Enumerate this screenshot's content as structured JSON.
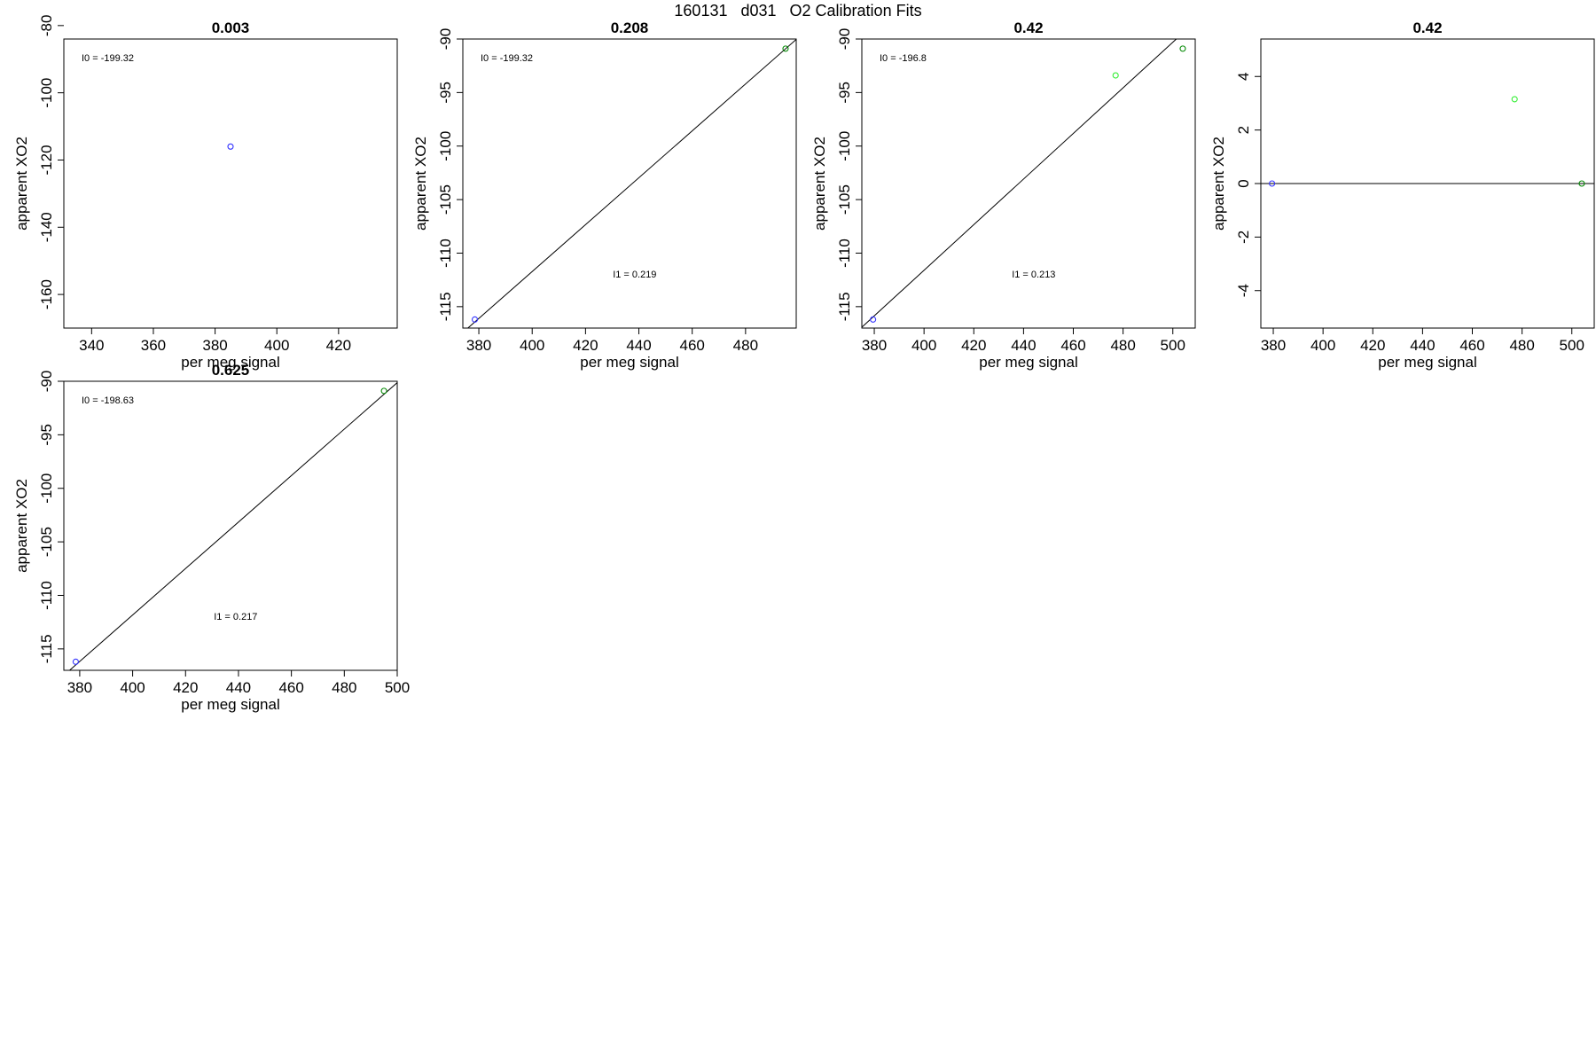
{
  "page_title": "160131   d031   O2 Calibration Fits",
  "colors": {
    "blue": "#3333ff",
    "green": "#008800",
    "light_green": "#33ee33",
    "frame": "#000000"
  },
  "chart_data": [
    {
      "type": "scatter",
      "title": "0.003",
      "xlabel": "per meg signal",
      "ylabel": "apparent XO2",
      "xlim": [
        331,
        439
      ],
      "ylim": [
        -170,
        -84
      ],
      "xticks": [
        340,
        360,
        380,
        400,
        420
      ],
      "yticks": [
        -80,
        -100,
        -120,
        -140,
        -160
      ],
      "annotations": [
        {
          "label": "I0 =",
          "value": "-199.32",
          "position": "top-left"
        }
      ],
      "points": [
        {
          "x": 385,
          "y": -116,
          "color": "blue"
        }
      ],
      "fit_line": null
    },
    {
      "type": "scatter",
      "title": "0.208",
      "xlabel": "per meg signal",
      "ylabel": "apparent XO2",
      "xlim": [
        374,
        499
      ],
      "ylim": [
        -117,
        -90
      ],
      "xticks": [
        380,
        400,
        420,
        440,
        460,
        480
      ],
      "yticks": [
        -90,
        -95,
        -100,
        -105,
        -110,
        -115
      ],
      "annotations": [
        {
          "label": "I0 =",
          "value": "-199.32",
          "position": "top-left"
        },
        {
          "label": "I1 =",
          "value": "0.219",
          "position": "middle"
        }
      ],
      "points": [
        {
          "x": 378.5,
          "y": -116.2,
          "color": "blue"
        },
        {
          "x": 495,
          "y": -90.9,
          "color": "green"
        }
      ],
      "fit_line": {
        "intercept": -199.32,
        "slope": 0.219
      }
    },
    {
      "type": "scatter",
      "title": "0.42",
      "xlabel": "per meg signal",
      "ylabel": "apparent XO2",
      "xlim": [
        375,
        509
      ],
      "ylim": [
        -117,
        -90
      ],
      "xticks": [
        380,
        400,
        420,
        440,
        460,
        480,
        500
      ],
      "yticks": [
        -90,
        -95,
        -100,
        -105,
        -110,
        -115
      ],
      "annotations": [
        {
          "label": "I0 =",
          "value": "-196.8",
          "position": "top-left"
        },
        {
          "label": "I1 =",
          "value": "0.213",
          "position": "middle"
        }
      ],
      "points": [
        {
          "x": 379.5,
          "y": -116.2,
          "color": "blue"
        },
        {
          "x": 477,
          "y": -93.4,
          "color": "light_green"
        },
        {
          "x": 504,
          "y": -90.9,
          "color": "green"
        }
      ],
      "fit_line": {
        "intercept": -196.8,
        "slope": 0.213
      }
    },
    {
      "type": "scatter",
      "title": "0.42",
      "xlabel": "per meg signal",
      "ylabel": "apparent XO2",
      "xlim": [
        375,
        509
      ],
      "ylim": [
        -5.4,
        5.4
      ],
      "xticks": [
        380,
        400,
        420,
        440,
        460,
        480,
        500
      ],
      "yticks": [
        4,
        2,
        0,
        -2,
        -4
      ],
      "annotations": [],
      "points": [
        {
          "x": 379.5,
          "y": 0,
          "color": "blue"
        },
        {
          "x": 477,
          "y": 3.15,
          "color": "light_green"
        },
        {
          "x": 504,
          "y": 0,
          "color": "green"
        }
      ],
      "fit_line": {
        "intercept": 0,
        "slope": 0
      }
    },
    {
      "type": "scatter",
      "title": "0.625",
      "xlabel": "per meg signal",
      "ylabel": "apparent XO2",
      "xlim": [
        374,
        500
      ],
      "ylim": [
        -117,
        -90
      ],
      "xticks": [
        380,
        400,
        420,
        440,
        460,
        480,
        500
      ],
      "yticks": [
        -90,
        -95,
        -100,
        -105,
        -110,
        -115
      ],
      "annotations": [
        {
          "label": "I0 =",
          "value": "-198.63",
          "position": "top-left"
        },
        {
          "label": "I1 =",
          "value": "0.217",
          "position": "middle"
        }
      ],
      "points": [
        {
          "x": 378.5,
          "y": -116.2,
          "color": "blue"
        },
        {
          "x": 495,
          "y": -90.9,
          "color": "green"
        }
      ],
      "fit_line": {
        "intercept": -198.63,
        "slope": 0.217
      }
    }
  ]
}
